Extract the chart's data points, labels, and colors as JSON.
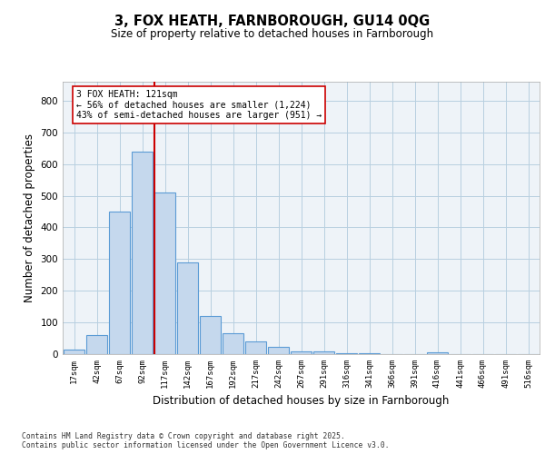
{
  "title1": "3, FOX HEATH, FARNBOROUGH, GU14 0QG",
  "title2": "Size of property relative to detached houses in Farnborough",
  "xlabel": "Distribution of detached houses by size in Farnborough",
  "ylabel": "Number of detached properties",
  "categories": [
    "17sqm",
    "42sqm",
    "67sqm",
    "92sqm",
    "117sqm",
    "142sqm",
    "167sqm",
    "192sqm",
    "217sqm",
    "242sqm",
    "267sqm",
    "291sqm",
    "316sqm",
    "341sqm",
    "366sqm",
    "391sqm",
    "416sqm",
    "441sqm",
    "466sqm",
    "491sqm",
    "516sqm"
  ],
  "values": [
    13,
    60,
    450,
    640,
    510,
    290,
    120,
    65,
    40,
    22,
    10,
    8,
    4,
    3,
    0,
    0,
    5,
    0,
    0,
    0,
    0
  ],
  "bar_color": "#c5d8ed",
  "bar_edge_color": "#5b9bd5",
  "vline_pos": 3.55,
  "vline_color": "#cc0000",
  "annotation_line1": "3 FOX HEATH: 121sqm",
  "annotation_line2": "← 56% of detached houses are smaller (1,224)",
  "annotation_line3": "43% of semi-detached houses are larger (951) →",
  "ylim": [
    0,
    860
  ],
  "yticks": [
    0,
    100,
    200,
    300,
    400,
    500,
    600,
    700,
    800
  ],
  "grid_color": "#b8cfe0",
  "bg_color": "#eef3f8",
  "footer1": "Contains HM Land Registry data © Crown copyright and database right 2025.",
  "footer2": "Contains public sector information licensed under the Open Government Licence v3.0."
}
